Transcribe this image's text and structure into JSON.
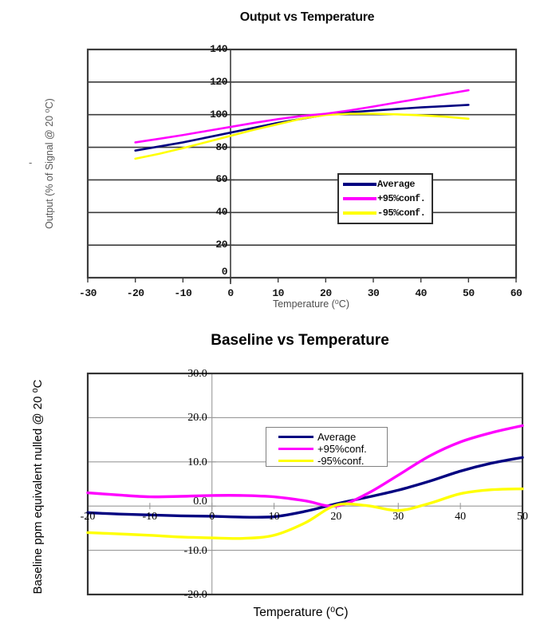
{
  "page": {
    "background": "#ffffff"
  },
  "misc": {
    "stray_dash": "-"
  },
  "colors": {
    "average": "#000080",
    "plus95": "#ff00ff",
    "minus95": "#ffff00"
  },
  "chart_data": [
    {
      "type": "line",
      "title": "Output vs Temperature",
      "xlabel": "Temperature (⁰C)",
      "ylabel": "Output (% of Signal @ 20 ⁰C)",
      "xlim": [
        -30,
        60
      ],
      "ylim": [
        0,
        140
      ],
      "xticks": [
        -30,
        -20,
        -10,
        0,
        10,
        20,
        30,
        40,
        50,
        60
      ],
      "yticks": [
        0,
        20,
        40,
        60,
        80,
        100,
        120,
        140
      ],
      "ytick_labels": [
        "0",
        "20",
        "40",
        "60",
        "80",
        "100",
        "120",
        "140"
      ],
      "grid": "horizontal",
      "legend_position": "right-center",
      "x": [
        -20,
        -15,
        -10,
        -5,
        0,
        5,
        10,
        15,
        20,
        25,
        30,
        35,
        40,
        45,
        50
      ],
      "series": [
        {
          "name": "Average",
          "color": "#000080",
          "values": [
            78,
            80.5,
            83,
            86,
            89,
            92,
            95,
            97.5,
            100,
            101.5,
            102.5,
            103.5,
            104.5,
            105.2,
            106
          ]
        },
        {
          "name": "+95%conf.",
          "color": "#ff00ff",
          "values": [
            83,
            85.2,
            87.5,
            90,
            92.5,
            95,
            97.3,
            99.2,
            100.6,
            102.6,
            105,
            107.5,
            110,
            112.5,
            115
          ]
        },
        {
          "name": "-95%conf.",
          "color": "#ffff00",
          "values": [
            73,
            76,
            79.5,
            83.2,
            87,
            90.8,
            94.2,
            97.6,
            99.8,
            100.6,
            100.6,
            100.2,
            99.6,
            98.8,
            97.5
          ]
        }
      ]
    },
    {
      "type": "line",
      "title": "Baseline vs Temperature",
      "xlabel": "Temperature (⁰C)",
      "ylabel": "Baseline ppm equivalent nulled @ 20 ⁰C",
      "xlim": [
        -20,
        50
      ],
      "ylim": [
        -20,
        30
      ],
      "xticks": [
        -20,
        -10,
        0,
        10,
        20,
        30,
        40,
        50
      ],
      "yticks": [
        -20,
        -10,
        0,
        10,
        20,
        30
      ],
      "ytick_labels": [
        "-20.0",
        "-10.0",
        "0.0",
        "10.0",
        "20.0",
        "30.0"
      ],
      "grid": "horizontal+zero-axis",
      "legend_position": "top-center",
      "x": [
        -20,
        -15,
        -10,
        -5,
        0,
        5,
        10,
        15,
        20,
        25,
        30,
        35,
        40,
        45,
        50
      ],
      "series": [
        {
          "name": "Average",
          "color": "#000080",
          "values": [
            -1.5,
            -1.8,
            -2.0,
            -2.2,
            -2.3,
            -2.5,
            -2.4,
            -1.2,
            0.5,
            2.0,
            3.6,
            5.6,
            7.9,
            9.7,
            11.0
          ]
        },
        {
          "name": "+95%conf.",
          "color": "#ff00ff",
          "values": [
            3.0,
            2.5,
            2.1,
            2.2,
            2.4,
            2.4,
            2.1,
            1.2,
            0.0,
            2.8,
            7.0,
            11.3,
            14.5,
            16.6,
            18.2
          ]
        },
        {
          "name": "-95%conf.",
          "color": "#ffff00",
          "values": [
            -6.0,
            -6.3,
            -6.6,
            -7.0,
            -7.2,
            -7.3,
            -6.6,
            -3.8,
            0.2,
            0.1,
            -1.0,
            0.6,
            2.8,
            3.7,
            3.9
          ]
        }
      ]
    }
  ]
}
